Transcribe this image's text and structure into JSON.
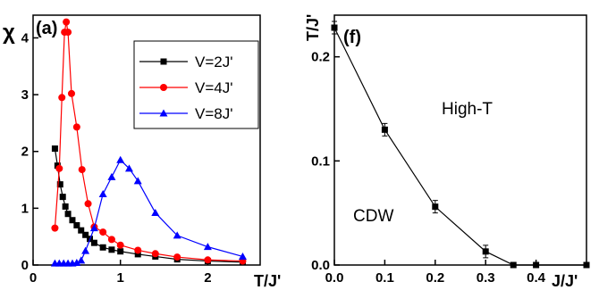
{
  "chart_data": [
    {
      "type": "line",
      "panel_label": "(a)",
      "ylabel": "χ",
      "xlabel": "T/J'",
      "xlim": [
        0,
        2.6
      ],
      "ylim": [
        0,
        4.4
      ],
      "xticks": [
        "0",
        "1",
        "2"
      ],
      "xtick_values": [
        0,
        1,
        2
      ],
      "yticks": [
        "0",
        "1",
        "2",
        "3",
        "4"
      ],
      "ytick_values": [
        0,
        1,
        2,
        3,
        4
      ],
      "legend_position": "top-right",
      "series": [
        {
          "name": "V=2J'",
          "color": "#000000",
          "marker": "square",
          "x": [
            0.25,
            0.28,
            0.31,
            0.34,
            0.37,
            0.4,
            0.45,
            0.5,
            0.55,
            0.6,
            0.65,
            0.7,
            0.8,
            0.9,
            1.0,
            1.2,
            1.4,
            1.65,
            2.0,
            2.4
          ],
          "y": [
            2.05,
            1.75,
            1.42,
            1.2,
            1.03,
            0.9,
            0.79,
            0.7,
            0.61,
            0.53,
            0.46,
            0.39,
            0.31,
            0.27,
            0.24,
            0.19,
            0.15,
            0.1,
            0.07,
            0.05
          ]
        },
        {
          "name": "V=4J'",
          "color": "#ff0000",
          "marker": "circle",
          "x": [
            0.25,
            0.3,
            0.33,
            0.36,
            0.38,
            0.4,
            0.44,
            0.5,
            0.56,
            0.63,
            0.7,
            0.8,
            0.9,
            1.0,
            1.2,
            1.4,
            1.65,
            2.0,
            2.4
          ],
          "y": [
            0.65,
            1.7,
            2.95,
            4.1,
            4.28,
            4.1,
            3.02,
            2.43,
            1.68,
            1.08,
            0.67,
            0.58,
            0.45,
            0.35,
            0.26,
            0.2,
            0.14,
            0.09,
            0.07
          ]
        },
        {
          "name": "V=8J'",
          "color": "#0000ff",
          "marker": "triangle",
          "x": [
            0.25,
            0.3,
            0.35,
            0.4,
            0.45,
            0.5,
            0.55,
            0.6,
            0.7,
            0.8,
            0.9,
            1.0,
            1.1,
            1.2,
            1.4,
            1.65,
            2.0,
            2.4
          ],
          "y": [
            0.03,
            0.03,
            0.03,
            0.03,
            0.03,
            0.04,
            0.08,
            0.25,
            0.65,
            1.25,
            1.55,
            1.85,
            1.7,
            1.48,
            0.92,
            0.52,
            0.32,
            0.15
          ]
        }
      ]
    },
    {
      "type": "line",
      "panel_label": "(f)",
      "ylabel": "T/J'",
      "xlabel": "J/J'",
      "xlim": [
        0,
        0.5
      ],
      "ylim": [
        0,
        0.24
      ],
      "xticks": [
        "0.0",
        "0.1",
        "0.2",
        "0.3",
        "0.4"
      ],
      "xtick_values": [
        0,
        0.1,
        0.2,
        0.3,
        0.4
      ],
      "yticks": [
        "0.0",
        "0.1",
        "0.2"
      ],
      "ytick_values": [
        0,
        0.1,
        0.2
      ],
      "region_labels": [
        "High-T",
        "CDW"
      ],
      "series": [
        {
          "marker": "square",
          "color": "#000000",
          "x": [
            0.0,
            0.1,
            0.2,
            0.3,
            0.355,
            0.4,
            0.5
          ],
          "y": [
            0.228,
            0.13,
            0.056,
            0.013,
            0.0,
            0.0,
            0.0
          ]
        }
      ]
    }
  ]
}
